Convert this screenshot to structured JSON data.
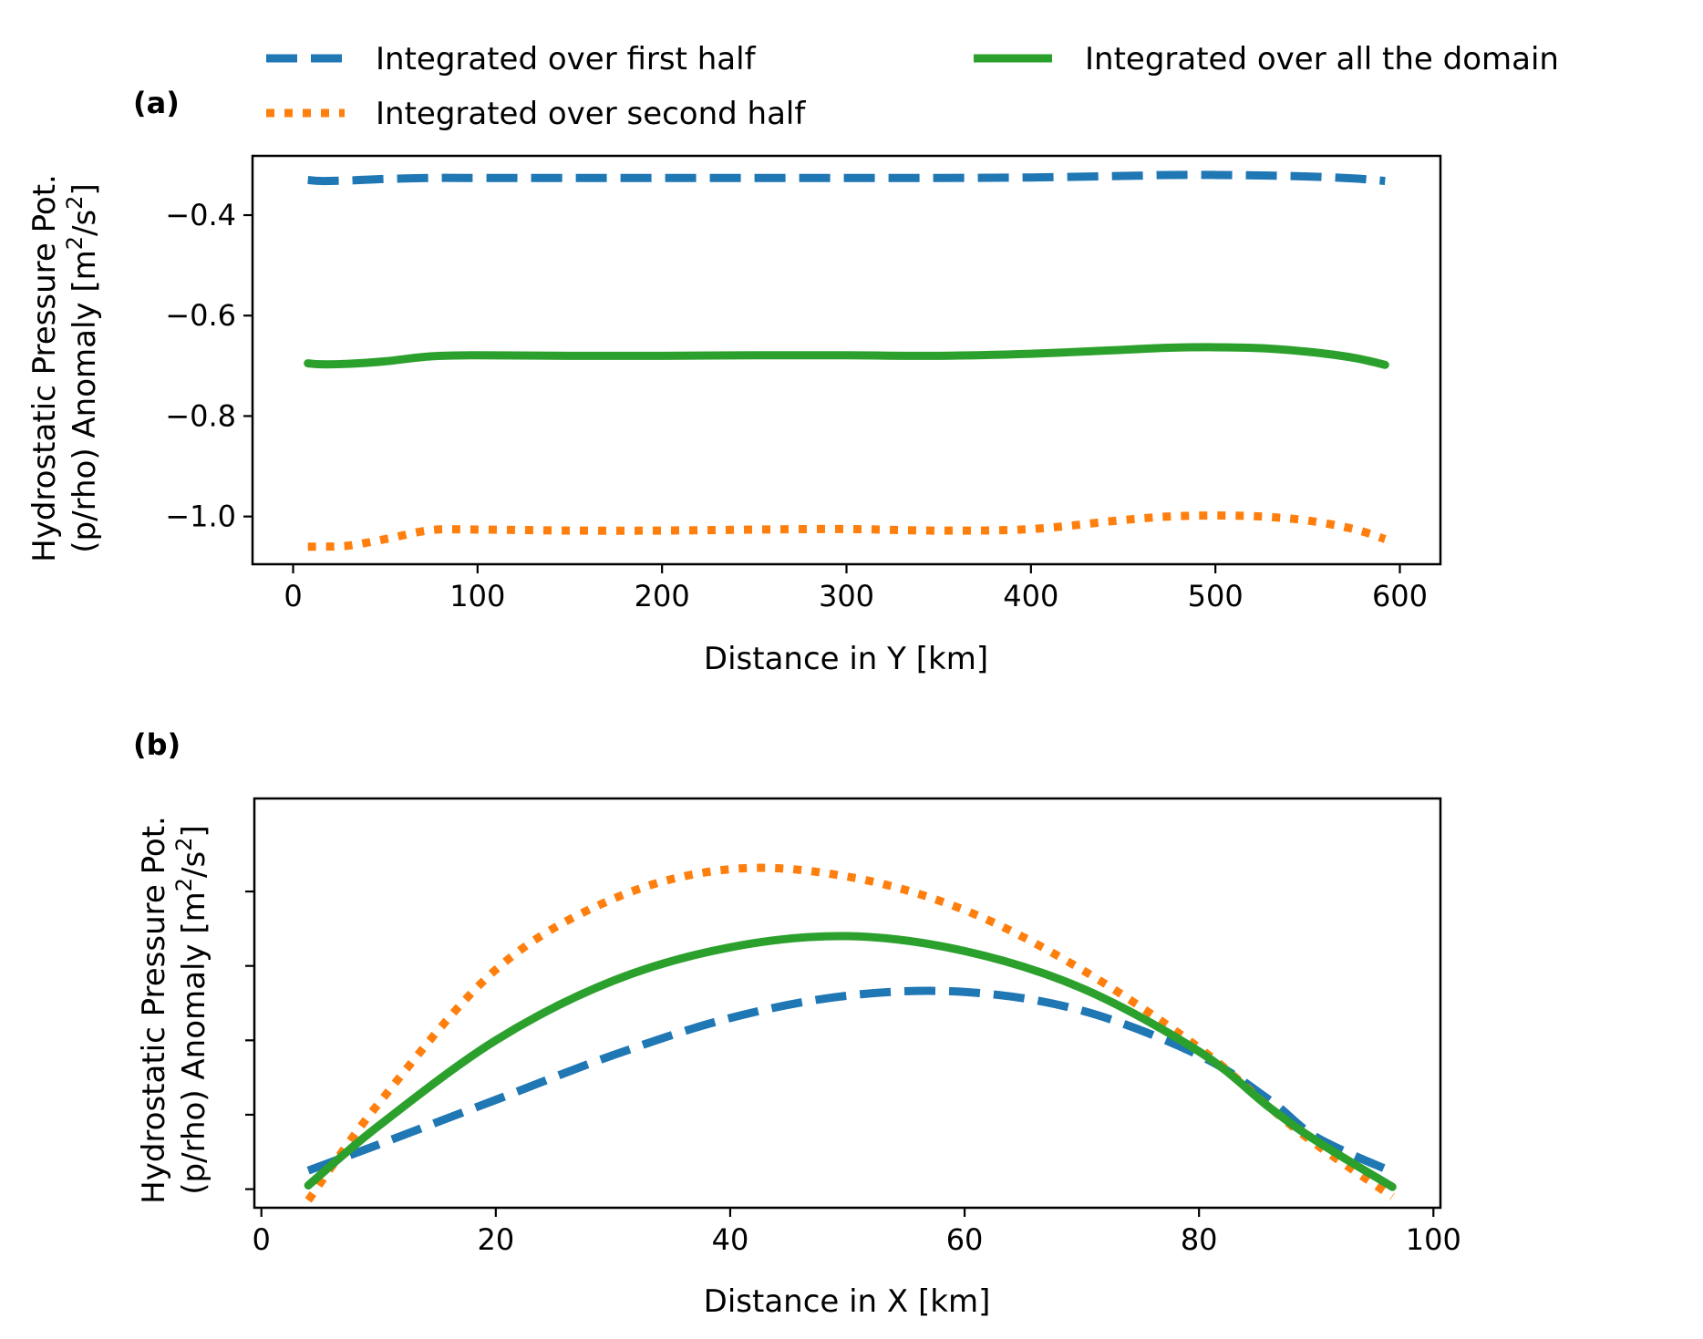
{
  "legend": {
    "entries": [
      {
        "label": "Integrated over first half",
        "color": "#1f77b4",
        "style": "dashed"
      },
      {
        "label": "Integrated over second half",
        "color": "#ff7f0e",
        "style": "dotted"
      },
      {
        "label": "Integrated over all the domain",
        "color": "#2ca02c",
        "style": "solid"
      }
    ]
  },
  "chart_data": [
    {
      "type": "line",
      "panel_label": "(a)",
      "xlabel": "Distance in Y [km]",
      "ylabel_line1": "Hydrostatic Pressure Pot.",
      "ylabel_line2_prefix": "(p/rho) Anomaly [m",
      "ylabel_line2_sup1": "2",
      "ylabel_line2_mid": "/s",
      "ylabel_line2_sup2": "2",
      "ylabel_line2_suffix": "]",
      "xlim": [
        -22,
        622
      ],
      "ylim": [
        -1.095,
        -0.282
      ],
      "xticks": [
        0,
        100,
        200,
        300,
        400,
        500,
        600
      ],
      "xtick_labels": [
        "0",
        "100",
        "200",
        "300",
        "400",
        "500",
        "600"
      ],
      "yticks": [
        -1.0,
        -0.8,
        -0.6,
        -0.4
      ],
      "ytick_labels": [
        "−1.0",
        "−0.8",
        "−0.6",
        "−0.4"
      ],
      "x": [
        8,
        15,
        30,
        50,
        75,
        100,
        150,
        200,
        250,
        300,
        350,
        400,
        450,
        475,
        500,
        525,
        550,
        575,
        592
      ],
      "series": [
        {
          "name": "Integrated over first half",
          "values": [
            -0.33,
            -0.332,
            -0.331,
            -0.328,
            -0.326,
            -0.326,
            -0.326,
            -0.326,
            -0.326,
            -0.326,
            -0.326,
            -0.325,
            -0.322,
            -0.32,
            -0.32,
            -0.321,
            -0.323,
            -0.327,
            -0.332
          ]
        },
        {
          "name": "Integrated over second half",
          "values": [
            -1.06,
            -1.06,
            -1.058,
            -1.045,
            -1.027,
            -1.026,
            -1.028,
            -1.028,
            -1.026,
            -1.025,
            -1.028,
            -1.025,
            -1.007,
            -1.0,
            -0.998,
            -1.0,
            -1.008,
            -1.025,
            -1.045
          ]
        },
        {
          "name": "Integrated over all the domain",
          "values": [
            -0.695,
            -0.697,
            -0.696,
            -0.691,
            -0.681,
            -0.679,
            -0.68,
            -0.68,
            -0.679,
            -0.679,
            -0.68,
            -0.676,
            -0.668,
            -0.664,
            -0.663,
            -0.665,
            -0.672,
            -0.684,
            -0.698
          ]
        }
      ]
    },
    {
      "type": "line",
      "panel_label": "(b)",
      "xlabel": "Distance in X [km]",
      "ylabel_line1": "Hydrostatic Pressure Pot.",
      "ylabel_line2_prefix": "(p/rho) Anomaly [m",
      "ylabel_line2_sup1": "2",
      "ylabel_line2_mid": "/s",
      "ylabel_line2_sup2": "2",
      "ylabel_line2_suffix": "]",
      "xlim": [
        -0.6,
        100.6
      ],
      "ylim": [
        0,
        5.5
      ],
      "xticks": [
        0,
        20,
        40,
        60,
        80,
        100
      ],
      "xtick_labels": [
        "0",
        "20",
        "40",
        "60",
        "80",
        "100"
      ],
      "yticks": [
        0.25,
        1.25,
        2.25,
        3.25,
        4.25
      ],
      "ytick_labels": [
        "",
        "",
        "",
        "",
        ""
      ],
      "x": [
        4,
        10,
        20,
        30,
        40,
        50,
        60,
        70,
        80,
        86,
        90,
        96.5
      ],
      "series": [
        {
          "name": "Integrated over first half",
          "values": [
            0.5,
            0.85,
            1.45,
            2.05,
            2.55,
            2.85,
            2.9,
            2.65,
            2.05,
            1.45,
            0.95,
            0.48
          ]
        },
        {
          "name": "Integrated over second half",
          "values": [
            0.1,
            1.4,
            3.2,
            4.15,
            4.55,
            4.45,
            4.0,
            3.2,
            2.15,
            1.35,
            0.85,
            0.15
          ]
        },
        {
          "name": "Integrated over all the domain",
          "values": [
            0.3,
            1.1,
            2.25,
            3.05,
            3.5,
            3.65,
            3.45,
            2.95,
            2.1,
            1.35,
            0.9,
            0.28
          ]
        }
      ]
    }
  ]
}
